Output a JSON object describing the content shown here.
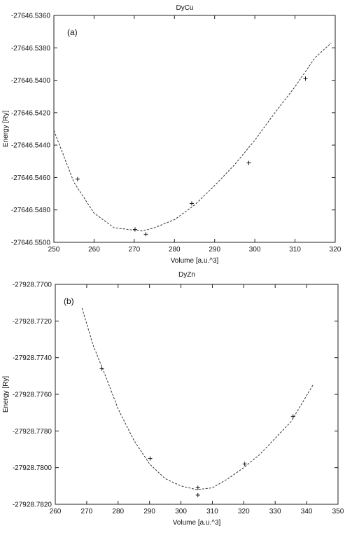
{
  "chart_data": [
    {
      "type": "scatter",
      "title": "DyCu",
      "panel_label": "(a)",
      "xlabel": "Volume [a.u.^3]",
      "ylabel": "Energy [Ry]",
      "xlim": [
        250,
        320
      ],
      "ylim": [
        -27646.55,
        -27646.536
      ],
      "xticks": [
        250,
        260,
        270,
        280,
        290,
        300,
        310,
        320
      ],
      "yticks": [
        -27646.55,
        -27646.548,
        -27646.546,
        -27646.544,
        -27646.542,
        -27646.54,
        -27646.538,
        -27646.536
      ],
      "ytick_labels": [
        "-27646.5500",
        "-27646.5480",
        "-27646.5460",
        "-27646.5440",
        "-27646.5420",
        "-27646.5400",
        "-27646.5380",
        "-27646.5360"
      ],
      "grid": false,
      "line_color": "#333333",
      "marker_color": "#111111",
      "points": {
        "x": [
          255.9,
          270.2,
          272.9,
          284.3,
          298.5,
          312.6
        ],
        "y": [
          -27646.5461,
          -27646.5492,
          -27646.5495,
          -27646.5476,
          -27646.5451,
          -27646.5399
        ]
      },
      "fit_curve": {
        "x": [
          250,
          255,
          260,
          265,
          270,
          272,
          275,
          280,
          285,
          290,
          295,
          300,
          305,
          310,
          315,
          319
        ],
        "y": [
          -27646.5431,
          -27646.5463,
          -27646.5482,
          -27646.5491,
          -27646.54925,
          -27646.5493,
          -27646.5491,
          -27646.5486,
          -27646.5477,
          -27646.5465,
          -27646.5452,
          -27646.5437,
          -27646.542,
          -27646.5404,
          -27646.5386,
          -27646.5377
        ]
      }
    },
    {
      "type": "scatter",
      "title": "DyZn",
      "panel_label": "(b)",
      "xlabel": "Volume [a.u.^3]",
      "ylabel": "Energy [Ry]",
      "xlim": [
        260,
        350
      ],
      "ylim": [
        -27928.782,
        -27928.77
      ],
      "xticks": [
        260,
        270,
        280,
        290,
        300,
        310,
        320,
        330,
        340,
        350
      ],
      "yticks": [
        -27928.782,
        -27928.78,
        -27928.778,
        -27928.776,
        -27928.774,
        -27928.772,
        -27928.77
      ],
      "ytick_labels": [
        "-27928.7820",
        "-27928.7800",
        "-27928.7780",
        "-27928.7760",
        "-27928.7740",
        "-27928.7720",
        "-27928.7700"
      ],
      "grid": false,
      "line_color": "#333333",
      "marker_color": "#111111",
      "points": {
        "x": [
          274.8,
          290.2,
          305.4,
          305.4,
          320.3,
          335.7
        ],
        "y": [
          -27928.7746,
          -27928.7795,
          -27928.7811,
          -27928.7815,
          -27928.7798,
          -27928.7772
        ]
      },
      "fit_curve": {
        "x": [
          268.5,
          272,
          276,
          280,
          285,
          290,
          295,
          300,
          305,
          310,
          315,
          320,
          325,
          330,
          335,
          342
        ],
        "y": [
          -27928.7713,
          -27928.7733,
          -27928.775,
          -27928.7768,
          -27928.7785,
          -27928.7798,
          -27928.7806,
          -27928.781,
          -27928.7812,
          -27928.7811,
          -27928.7806,
          -27928.78,
          -27928.7793,
          -27928.7784,
          -27928.7775,
          -27928.7755
        ]
      }
    }
  ]
}
